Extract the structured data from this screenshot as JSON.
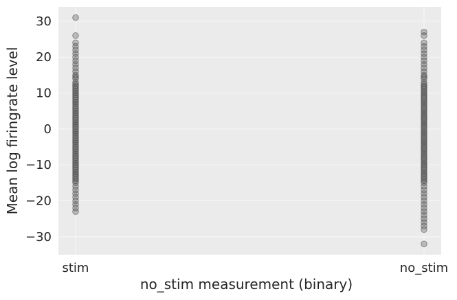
{
  "chart_data": {
    "type": "scatter",
    "title": "",
    "xlabel": "no_stim measurement (binary)",
    "ylabel": "Mean log firingrate level",
    "categories": [
      "stim",
      "no_stim"
    ],
    "ylim": [
      -35,
      34
    ],
    "yticks": [
      -30,
      -20,
      -10,
      0,
      10,
      20,
      30
    ],
    "grid": true,
    "background": "#ebebeb",
    "point_color": "#555555",
    "series": [
      {
        "x": "stim",
        "values": [
          31,
          26,
          24,
          23,
          22,
          21,
          20,
          19,
          18,
          17,
          16,
          15,
          14.5,
          14,
          13,
          12.5,
          12,
          11.5,
          11,
          10.5,
          10,
          9.5,
          9,
          8.5,
          8,
          7.5,
          7,
          6.5,
          6,
          5.5,
          5,
          4.5,
          4,
          3.5,
          3,
          2.5,
          2,
          1.5,
          1,
          0.5,
          0,
          -0.5,
          -1,
          -1.5,
          -2,
          -2.5,
          -3,
          -3.5,
          -4,
          -4.5,
          -5,
          -5.5,
          -6,
          -6.5,
          -7,
          -7.5,
          -8,
          -8.5,
          -9,
          -9.5,
          -10,
          -10.5,
          -11,
          -11.5,
          -12,
          -12.5,
          -13,
          -13.5,
          -14,
          -14.5,
          -15,
          -16,
          -17,
          -18,
          -19,
          -20,
          -21,
          -22,
          -23
        ]
      },
      {
        "x": "no_stim",
        "values": [
          27,
          26,
          24,
          23,
          22,
          21,
          20,
          19,
          18,
          17,
          16,
          15,
          14.5,
          14,
          13,
          12.5,
          12,
          11.5,
          11,
          10.5,
          10,
          9.5,
          9,
          8.5,
          8,
          7.5,
          7,
          6.5,
          6,
          5.5,
          5,
          4.5,
          4,
          3.5,
          3,
          2.5,
          2,
          1.5,
          1,
          0.5,
          0,
          -0.5,
          -1,
          -1.5,
          -2,
          -2.5,
          -3,
          -3.5,
          -4,
          -4.5,
          -5,
          -5.5,
          -6,
          -6.5,
          -7,
          -7.5,
          -8,
          -8.5,
          -9,
          -9.5,
          -10,
          -10.5,
          -11,
          -11.5,
          -12,
          -12.5,
          -13,
          -13.5,
          -14,
          -14.5,
          -15,
          -16,
          -17,
          -18,
          -19,
          -20,
          -21,
          -22,
          -23,
          -24,
          -25,
          -26,
          -27,
          -28,
          -32
        ]
      }
    ]
  }
}
